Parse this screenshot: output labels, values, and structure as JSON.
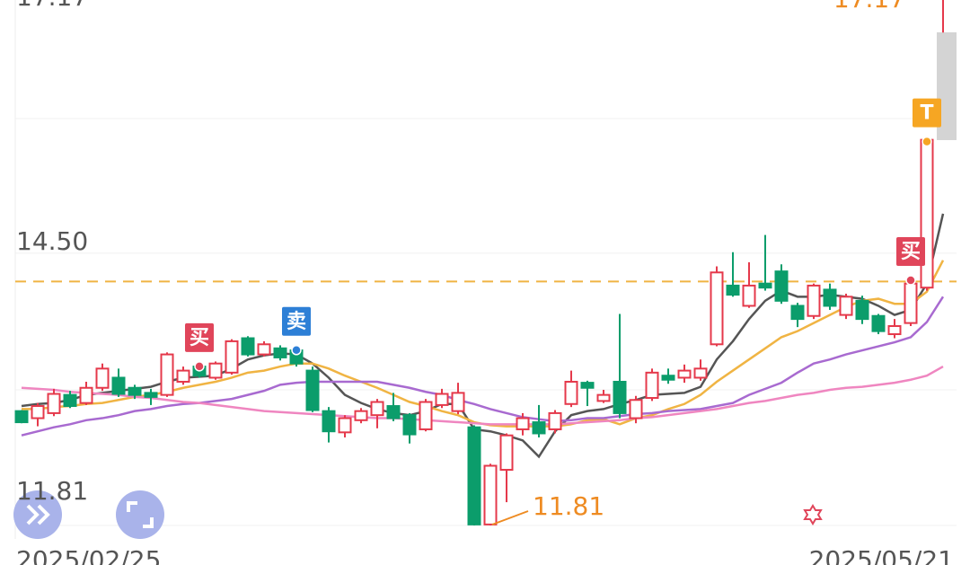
{
  "chart_data": {
    "type": "candlestick",
    "categories": [
      "2025/02/25",
      null,
      null,
      null,
      null,
      null,
      null,
      null,
      null,
      null,
      null,
      null,
      null,
      null,
      null,
      null,
      null,
      null,
      null,
      null,
      null,
      null,
      null,
      null,
      null,
      null,
      null,
      null,
      null,
      null,
      null,
      null,
      null,
      null,
      null,
      null,
      null,
      null,
      null,
      null,
      null,
      null,
      null,
      null,
      null,
      null,
      null,
      null,
      null,
      null,
      null,
      null,
      null,
      null,
      null,
      null,
      null,
      "2025/05/21"
    ],
    "open": [
      12.94,
      12.87,
      12.92,
      13.1,
      13.02,
      13.17,
      13.27,
      13.17,
      13.12,
      13.1,
      13.23,
      13.38,
      13.27,
      13.32,
      13.66,
      13.5,
      13.56,
      13.54,
      13.34,
      12.94,
      12.73,
      12.85,
      12.9,
      12.99,
      12.9,
      12.76,
      13.0,
      12.94,
      12.78,
      11.82,
      12.36,
      12.76,
      12.83,
      12.76,
      13.01,
      13.22,
      13.04,
      13.23,
      12.87,
      13.07,
      13.29,
      13.27,
      13.27,
      13.6,
      14.18,
      13.98,
      14.2,
      14.32,
      13.98,
      13.88,
      14.14,
      13.89,
      14.03,
      13.88,
      13.7,
      13.81,
      14.16,
      17.02
    ],
    "high": [
      12.95,
      13.02,
      13.16,
      13.14,
      13.23,
      13.41,
      13.36,
      13.2,
      13.16,
      13.52,
      13.38,
      13.4,
      13.43,
      13.65,
      13.68,
      13.63,
      13.59,
      13.56,
      13.38,
      12.98,
      12.9,
      12.97,
      13.06,
      13.12,
      12.92,
      13.06,
      13.16,
      13.22,
      12.8,
      12.42,
      12.72,
      12.92,
      13.0,
      12.95,
      13.34,
      13.24,
      13.15,
      13.9,
      13.09,
      13.36,
      13.36,
      13.4,
      13.45,
      14.37,
      14.51,
      14.41,
      14.68,
      14.39,
      14.01,
      14.2,
      14.2,
      14.1,
      14.08,
      13.9,
      13.85,
      14.25,
      15.62,
      17.17
    ],
    "low": [
      12.82,
      12.79,
      12.89,
      12.97,
      13.0,
      13.14,
      13.08,
      13.06,
      13.0,
      13.08,
      13.2,
      13.27,
      13.25,
      13.3,
      13.48,
      13.48,
      13.44,
      13.38,
      12.93,
      12.63,
      12.68,
      12.82,
      12.77,
      12.84,
      12.62,
      12.74,
      12.97,
      12.91,
      11.81,
      11.81,
      12.04,
      12.7,
      12.68,
      12.72,
      12.98,
      12.99,
      13.02,
      12.87,
      12.82,
      13.04,
      13.21,
      13.22,
      13.24,
      13.58,
      14.07,
      13.96,
      14.13,
      14.0,
      13.77,
      13.85,
      13.94,
      13.85,
      13.8,
      13.7,
      13.66,
      13.78,
      14.13,
      16.68
    ],
    "close": [
      12.83,
      12.99,
      13.11,
      12.99,
      13.17,
      13.36,
      13.11,
      13.1,
      13.08,
      13.5,
      13.34,
      13.29,
      13.41,
      13.63,
      13.5,
      13.6,
      13.47,
      13.41,
      12.95,
      12.74,
      12.87,
      12.94,
      13.03,
      12.87,
      12.71,
      13.03,
      13.11,
      13.12,
      11.82,
      12.4,
      12.7,
      12.87,
      12.72,
      12.92,
      13.23,
      13.17,
      13.1,
      12.92,
      13.05,
      13.32,
      13.25,
      13.34,
      13.36,
      14.31,
      14.09,
      14.18,
      14.16,
      14.03,
      13.85,
      14.18,
      13.98,
      14.07,
      13.85,
      13.73,
      13.78,
      14.2,
      15.62,
      17.15
    ],
    "up_color": "#e5394b",
    "down_color": "#0b9d6b",
    "series": [
      {
        "color": "#555555",
        "values": [
          12.99,
          13.01,
          13.02,
          13.05,
          13.1,
          13.12,
          13.14,
          13.16,
          13.18,
          13.23,
          13.27,
          13.28,
          13.29,
          13.36,
          13.45,
          13.49,
          13.51,
          13.5,
          13.41,
          13.27,
          13.1,
          13.02,
          12.96,
          12.92,
          12.9,
          12.94,
          13.01,
          13.01,
          12.76,
          12.74,
          12.7,
          12.65,
          12.49,
          12.74,
          12.9,
          12.94,
          12.96,
          13.01,
          13.05,
          13.1,
          13.11,
          13.12,
          13.18,
          13.45,
          13.63,
          13.85,
          14.03,
          14.13,
          14.07,
          14.07,
          14.09,
          14.07,
          14.05,
          13.98,
          13.89,
          13.94,
          14.2,
          14.89
        ]
      },
      {
        "color": "#f0b443",
        "values": [
          12.96,
          12.96,
          12.98,
          12.99,
          13.01,
          13.02,
          13.05,
          13.08,
          13.1,
          13.13,
          13.17,
          13.2,
          13.23,
          13.27,
          13.32,
          13.34,
          13.38,
          13.41,
          13.41,
          13.36,
          13.29,
          13.23,
          13.17,
          13.1,
          13.03,
          12.99,
          12.94,
          12.9,
          12.83,
          12.8,
          12.79,
          12.79,
          12.79,
          12.79,
          12.81,
          12.85,
          12.86,
          12.81,
          12.87,
          12.9,
          12.96,
          13.01,
          13.1,
          13.23,
          13.34,
          13.45,
          13.56,
          13.67,
          13.73,
          13.81,
          13.89,
          13.97,
          14.03,
          14.05,
          14.0,
          14.0,
          14.12,
          14.43
        ]
      },
      {
        "color": "#a86ad0",
        "values": [
          12.7,
          12.74,
          12.78,
          12.81,
          12.85,
          12.87,
          12.9,
          12.94,
          12.96,
          12.99,
          13.01,
          13.02,
          13.04,
          13.06,
          13.1,
          13.14,
          13.2,
          13.22,
          13.23,
          13.23,
          13.23,
          13.23,
          13.23,
          13.2,
          13.17,
          13.13,
          13.1,
          13.05,
          13.01,
          12.96,
          12.92,
          12.88,
          12.86,
          12.84,
          12.85,
          12.87,
          12.87,
          12.89,
          12.91,
          12.92,
          12.94,
          12.95,
          12.96,
          12.99,
          13.02,
          13.1,
          13.16,
          13.22,
          13.32,
          13.41,
          13.45,
          13.5,
          13.54,
          13.58,
          13.62,
          13.67,
          13.82,
          14.07
        ]
      },
      {
        "color": "#ef86c0",
        "values": [
          13.17,
          13.16,
          13.15,
          13.13,
          13.12,
          13.11,
          13.1,
          13.08,
          13.07,
          13.05,
          13.03,
          13.02,
          13.0,
          12.98,
          12.96,
          12.94,
          12.93,
          12.92,
          12.91,
          12.9,
          12.89,
          12.88,
          12.87,
          12.87,
          12.86,
          12.85,
          12.84,
          12.83,
          12.82,
          12.81,
          12.81,
          12.81,
          12.81,
          12.81,
          12.82,
          12.83,
          12.84,
          12.85,
          12.87,
          12.88,
          12.9,
          12.92,
          12.94,
          12.96,
          12.99,
          13.02,
          13.04,
          13.07,
          13.1,
          13.12,
          13.15,
          13.17,
          13.18,
          13.2,
          13.22,
          13.25,
          13.29,
          13.38
        ]
      }
    ],
    "ylim": [
      11.81,
      17.17
    ],
    "yticks": [
      17.17,
      {
        "value": 14.5,
        "label": "14.50"
      },
      11.81
    ],
    "grid": true,
    "price_line": 14.22,
    "price_line_color": "#f0b443",
    "high_label": 17.17,
    "low_label": 11.81,
    "markers": [
      {
        "label": "买",
        "at": 11,
        "color": "#e0455a"
      },
      {
        "label": "卖",
        "at": 17,
        "color": "#2d7fd6"
      },
      {
        "label": "买",
        "at": 55,
        "color": "#e0455a"
      },
      {
        "label": "T",
        "at": 56,
        "color": "#f6a623"
      }
    ]
  }
}
